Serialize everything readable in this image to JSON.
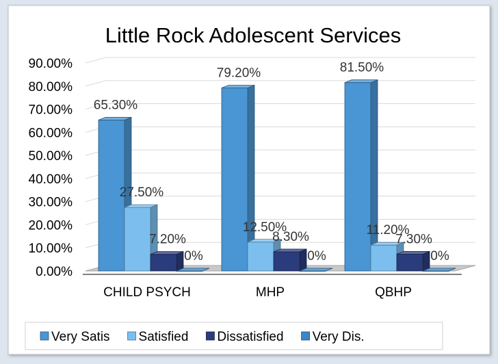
{
  "chart_data": {
    "type": "bar",
    "title": "Little Rock Adolescent Services",
    "categories": [
      "CHILD PSYCH",
      "MHP",
      "QBHP"
    ],
    "series": [
      {
        "name": "Very Satis",
        "values": [
          65.3,
          79.2,
          81.5
        ],
        "labels": [
          "65.30%",
          "79.20%",
          "81.50%"
        ],
        "color": "#4a95d3"
      },
      {
        "name": "Satisfied",
        "values": [
          27.5,
          12.5,
          11.2
        ],
        "labels": [
          "27.50%",
          "12.50%",
          "11.20%"
        ],
        "color": "#7cbfef"
      },
      {
        "name": "Dissatisfied",
        "values": [
          7.2,
          8.3,
          7.3
        ],
        "labels": [
          "7.20%",
          "8.30%",
          "7.30%"
        ],
        "color": "#2b3c7c"
      },
      {
        "name": "Very Dis.",
        "values": [
          0,
          0,
          0
        ],
        "labels": [
          "0%",
          "0%",
          "0%"
        ],
        "color": "#3b86c6"
      }
    ],
    "y_ticks": [
      "0.00%",
      "10.00%",
      "20.00%",
      "30.00%",
      "40.00%",
      "50.00%",
      "60.00%",
      "70.00%",
      "80.00%",
      "90.00%"
    ],
    "ylim": [
      0,
      90
    ],
    "legend_position": "bottom",
    "grid": true,
    "style": "3d-clustered-column"
  }
}
